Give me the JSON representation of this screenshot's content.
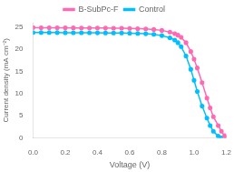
{
  "chart_data": {
    "type": "line",
    "xlabel": "Voltage (V)",
    "ylabel": "Current density (mA cm⁻²)",
    "xlim": [
      0.0,
      1.2
    ],
    "ylim": [
      0,
      26
    ],
    "xticks": [
      {
        "value": 0.0,
        "label": "0.0"
      },
      0.2,
      0.4,
      0.6,
      0.8,
      {
        "value": 1.0,
        "label": "1.0"
      },
      1.2
    ],
    "yticks": [
      0,
      5,
      10,
      15,
      20,
      25
    ],
    "grid": false,
    "legend": "top",
    "series": [
      {
        "name": "B-SubPc-F",
        "color": "#ff69b4",
        "marker": "circle",
        "x": [
          0.0,
          0.05,
          0.1,
          0.15,
          0.2,
          0.25,
          0.3,
          0.35,
          0.4,
          0.45,
          0.5,
          0.55,
          0.6,
          0.65,
          0.7,
          0.75,
          0.8,
          0.85,
          0.88,
          0.9,
          0.92,
          0.95,
          0.98,
          1.0,
          1.02,
          1.05,
          1.08,
          1.1,
          1.12,
          1.15,
          1.17,
          1.19,
          1.2
        ],
        "values": [
          24.9,
          24.88,
          24.87,
          24.86,
          24.85,
          24.84,
          24.83,
          24.82,
          24.81,
          24.8,
          24.78,
          24.76,
          24.73,
          24.68,
          24.6,
          24.48,
          24.28,
          23.9,
          23.55,
          23.2,
          22.7,
          21.5,
          19.5,
          17.8,
          15.8,
          12.5,
          9.0,
          6.8,
          4.8,
          2.8,
          1.5,
          0.5,
          0.1
        ]
      },
      {
        "name": "Control",
        "color": "#00bfff",
        "marker": "circle",
        "x": [
          0.0,
          0.05,
          0.1,
          0.15,
          0.2,
          0.25,
          0.3,
          0.35,
          0.4,
          0.45,
          0.5,
          0.55,
          0.6,
          0.65,
          0.7,
          0.75,
          0.8,
          0.85,
          0.88,
          0.9,
          0.92,
          0.95,
          0.98,
          1.0,
          1.02,
          1.05,
          1.08,
          1.1,
          1.12,
          1.15,
          1.17
        ],
        "values": [
          23.8,
          23.79,
          23.78,
          23.77,
          23.76,
          23.75,
          23.74,
          23.73,
          23.72,
          23.71,
          23.7,
          23.68,
          23.65,
          23.6,
          23.52,
          23.38,
          23.1,
          22.6,
          22.1,
          21.5,
          20.6,
          18.5,
          15.5,
          13.0,
          10.5,
          7.2,
          4.5,
          2.8,
          1.5,
          0.4,
          0.0
        ]
      }
    ]
  }
}
